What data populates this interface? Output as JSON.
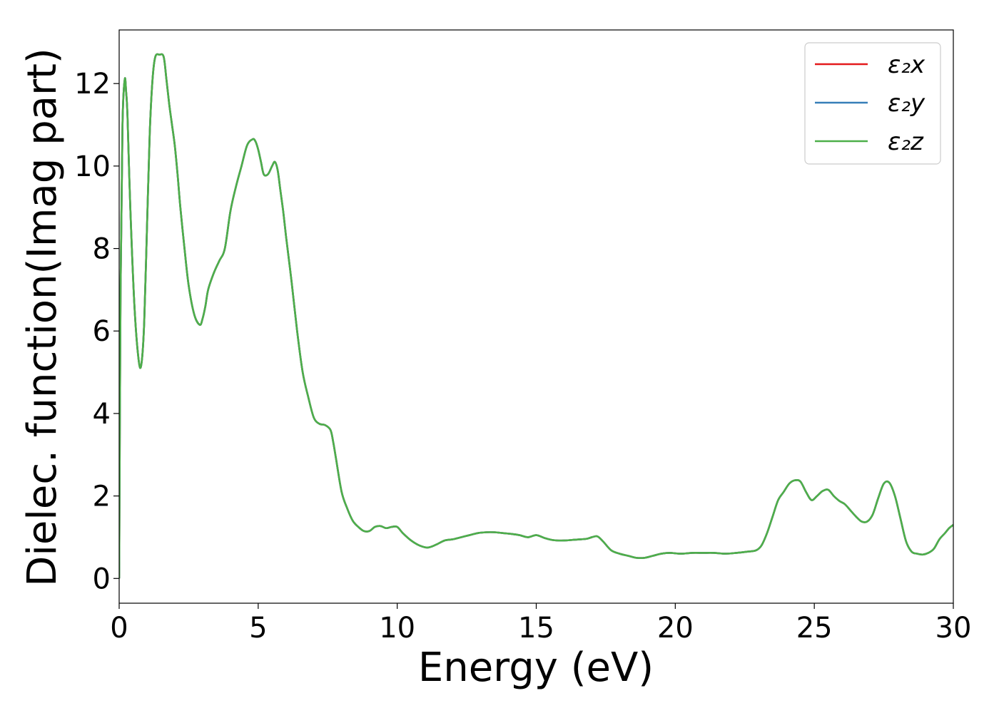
{
  "chart_data": {
    "type": "line",
    "xlabel": "Energy (eV)",
    "ylabel": "Dielec. function(Imag part)",
    "xlim": [
      0,
      30
    ],
    "ylim": [
      -0.6,
      13.3
    ],
    "xticks": [
      0,
      5,
      10,
      15,
      20,
      25,
      30
    ],
    "yticks": [
      0,
      2,
      4,
      6,
      8,
      10,
      12
    ],
    "grid": false,
    "legend_position": "top-right",
    "x": [
      0.0,
      0.05,
      0.12,
      0.2,
      0.25,
      0.3,
      0.4,
      0.55,
      0.7,
      0.8,
      0.9,
      1.0,
      1.1,
      1.2,
      1.3,
      1.45,
      1.6,
      1.7,
      1.8,
      1.9,
      2.0,
      2.1,
      2.2,
      2.35,
      2.5,
      2.7,
      2.9,
      3.0,
      3.1,
      3.2,
      3.4,
      3.6,
      3.8,
      4.0,
      4.2,
      4.4,
      4.6,
      4.8,
      4.9,
      5.0,
      5.1,
      5.2,
      5.35,
      5.5,
      5.6,
      5.7,
      5.8,
      5.9,
      6.0,
      6.2,
      6.4,
      6.6,
      6.8,
      7.0,
      7.2,
      7.4,
      7.6,
      7.7,
      7.8,
      8.0,
      8.2,
      8.4,
      8.6,
      8.8,
      9.0,
      9.2,
      9.4,
      9.6,
      9.8,
      10.0,
      10.2,
      10.5,
      10.8,
      11.1,
      11.4,
      11.7,
      12.0,
      12.3,
      12.6,
      12.9,
      13.2,
      13.5,
      13.8,
      14.1,
      14.4,
      14.7,
      15.0,
      15.3,
      15.6,
      16.0,
      16.4,
      16.8,
      17.0,
      17.2,
      17.4,
      17.7,
      18.0,
      18.3,
      18.6,
      18.9,
      19.2,
      19.5,
      19.8,
      20.2,
      20.6,
      21.0,
      21.4,
      21.8,
      22.2,
      22.6,
      22.9,
      23.1,
      23.3,
      23.5,
      23.7,
      23.9,
      24.1,
      24.3,
      24.5,
      24.7,
      24.9,
      25.1,
      25.3,
      25.5,
      25.7,
      25.9,
      26.1,
      26.3,
      26.5,
      26.7,
      26.9,
      27.1,
      27.3,
      27.5,
      27.7,
      27.9,
      28.1,
      28.3,
      28.5,
      28.7,
      28.9,
      29.1,
      29.3,
      29.5,
      29.7,
      29.85,
      30.0
    ],
    "series": [
      {
        "name": "ε₂x",
        "color": "#e41a1c",
        "values": [
          0.0,
          7.0,
          11.0,
          12.1,
          11.8,
          11.2,
          9.0,
          6.6,
          5.3,
          5.2,
          6.2,
          8.5,
          10.8,
          12.1,
          12.65,
          12.7,
          12.65,
          12.1,
          11.5,
          11.0,
          10.5,
          9.8,
          9.0,
          8.0,
          7.1,
          6.4,
          6.15,
          6.3,
          6.6,
          7.0,
          7.4,
          7.7,
          8.0,
          8.9,
          9.5,
          10.0,
          10.5,
          10.65,
          10.6,
          10.4,
          10.1,
          9.8,
          9.8,
          10.0,
          10.1,
          9.9,
          9.4,
          8.9,
          8.3,
          7.2,
          6.0,
          5.0,
          4.4,
          3.9,
          3.75,
          3.72,
          3.6,
          3.3,
          2.9,
          2.1,
          1.7,
          1.4,
          1.25,
          1.15,
          1.15,
          1.25,
          1.27,
          1.22,
          1.25,
          1.25,
          1.1,
          0.92,
          0.8,
          0.75,
          0.82,
          0.92,
          0.95,
          1.0,
          1.05,
          1.1,
          1.12,
          1.12,
          1.1,
          1.08,
          1.05,
          1.0,
          1.05,
          0.98,
          0.93,
          0.92,
          0.94,
          0.96,
          1.0,
          1.02,
          0.9,
          0.68,
          0.6,
          0.55,
          0.5,
          0.5,
          0.55,
          0.6,
          0.62,
          0.6,
          0.62,
          0.62,
          0.62,
          0.6,
          0.62,
          0.65,
          0.68,
          0.8,
          1.1,
          1.5,
          1.9,
          2.1,
          2.3,
          2.38,
          2.35,
          2.1,
          1.9,
          2.0,
          2.12,
          2.15,
          2.0,
          1.88,
          1.8,
          1.65,
          1.5,
          1.38,
          1.38,
          1.55,
          1.95,
          2.3,
          2.32,
          2.0,
          1.45,
          0.9,
          0.65,
          0.6,
          0.58,
          0.62,
          0.72,
          0.95,
          1.1,
          1.22,
          1.3
        ]
      },
      {
        "name": "ε₂y",
        "color": "#377eb8",
        "values": [
          0.0,
          7.0,
          11.0,
          12.1,
          11.8,
          11.2,
          9.0,
          6.6,
          5.3,
          5.2,
          6.2,
          8.5,
          10.8,
          12.1,
          12.65,
          12.7,
          12.65,
          12.1,
          11.5,
          11.0,
          10.5,
          9.8,
          9.0,
          8.0,
          7.1,
          6.4,
          6.15,
          6.3,
          6.6,
          7.0,
          7.4,
          7.7,
          8.0,
          8.9,
          9.5,
          10.0,
          10.5,
          10.65,
          10.6,
          10.4,
          10.1,
          9.8,
          9.8,
          10.0,
          10.1,
          9.9,
          9.4,
          8.9,
          8.3,
          7.2,
          6.0,
          5.0,
          4.4,
          3.9,
          3.75,
          3.72,
          3.6,
          3.3,
          2.9,
          2.1,
          1.7,
          1.4,
          1.25,
          1.15,
          1.15,
          1.25,
          1.27,
          1.22,
          1.25,
          1.25,
          1.1,
          0.92,
          0.8,
          0.75,
          0.82,
          0.92,
          0.95,
          1.0,
          1.05,
          1.1,
          1.12,
          1.12,
          1.1,
          1.08,
          1.05,
          1.0,
          1.05,
          0.98,
          0.93,
          0.92,
          0.94,
          0.96,
          1.0,
          1.02,
          0.9,
          0.68,
          0.6,
          0.55,
          0.5,
          0.5,
          0.55,
          0.6,
          0.62,
          0.6,
          0.62,
          0.62,
          0.62,
          0.6,
          0.62,
          0.65,
          0.68,
          0.8,
          1.1,
          1.5,
          1.9,
          2.1,
          2.3,
          2.38,
          2.35,
          2.1,
          1.9,
          2.0,
          2.12,
          2.15,
          2.0,
          1.88,
          1.8,
          1.65,
          1.5,
          1.38,
          1.38,
          1.55,
          1.95,
          2.3,
          2.32,
          2.0,
          1.45,
          0.9,
          0.65,
          0.6,
          0.58,
          0.62,
          0.72,
          0.95,
          1.1,
          1.22,
          1.3
        ]
      },
      {
        "name": "ε₂z",
        "color": "#4daf4a",
        "values": [
          0.0,
          7.0,
          11.0,
          12.1,
          11.8,
          11.2,
          9.0,
          6.6,
          5.3,
          5.2,
          6.2,
          8.5,
          10.8,
          12.1,
          12.65,
          12.7,
          12.65,
          12.1,
          11.5,
          11.0,
          10.5,
          9.8,
          9.0,
          8.0,
          7.1,
          6.4,
          6.15,
          6.3,
          6.6,
          7.0,
          7.4,
          7.7,
          8.0,
          8.9,
          9.5,
          10.0,
          10.5,
          10.65,
          10.6,
          10.4,
          10.1,
          9.8,
          9.8,
          10.0,
          10.1,
          9.9,
          9.4,
          8.9,
          8.3,
          7.2,
          6.0,
          5.0,
          4.4,
          3.9,
          3.75,
          3.72,
          3.6,
          3.3,
          2.9,
          2.1,
          1.7,
          1.4,
          1.25,
          1.15,
          1.15,
          1.25,
          1.27,
          1.22,
          1.25,
          1.25,
          1.1,
          0.92,
          0.8,
          0.75,
          0.82,
          0.92,
          0.95,
          1.0,
          1.05,
          1.1,
          1.12,
          1.12,
          1.1,
          1.08,
          1.05,
          1.0,
          1.05,
          0.98,
          0.93,
          0.92,
          0.94,
          0.96,
          1.0,
          1.02,
          0.9,
          0.68,
          0.6,
          0.55,
          0.5,
          0.5,
          0.55,
          0.6,
          0.62,
          0.6,
          0.62,
          0.62,
          0.62,
          0.6,
          0.62,
          0.65,
          0.68,
          0.8,
          1.1,
          1.5,
          1.9,
          2.1,
          2.3,
          2.38,
          2.35,
          2.1,
          1.9,
          2.0,
          2.12,
          2.15,
          2.0,
          1.88,
          1.8,
          1.65,
          1.5,
          1.38,
          1.38,
          1.55,
          1.95,
          2.3,
          2.32,
          2.0,
          1.45,
          0.9,
          0.65,
          0.6,
          0.58,
          0.62,
          0.72,
          0.95,
          1.1,
          1.22,
          1.3
        ]
      }
    ]
  }
}
